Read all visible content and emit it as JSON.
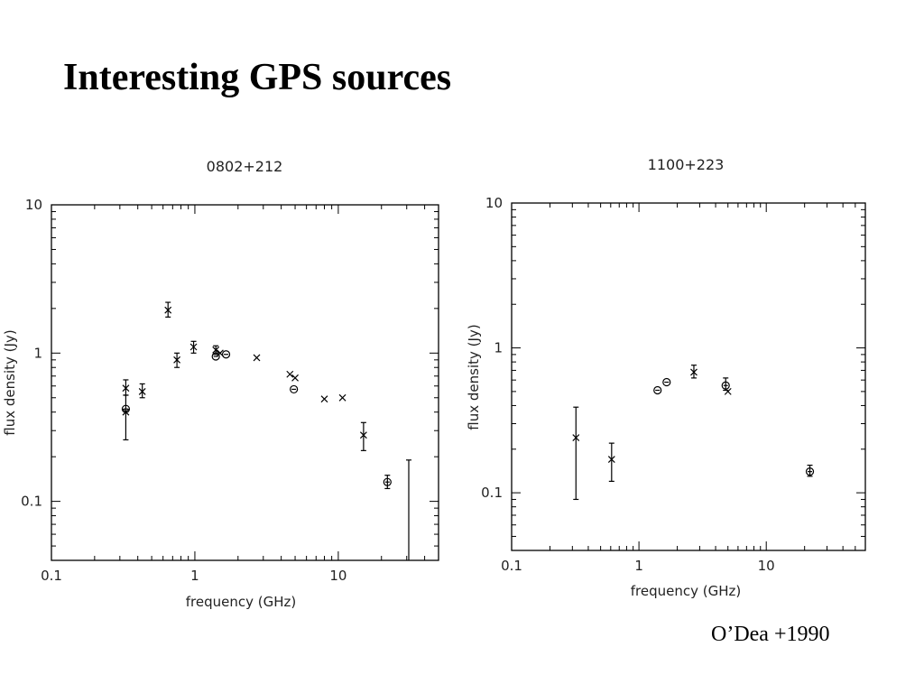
{
  "slide": {
    "title": "Interesting GPS sources",
    "credit": "O’Dea +1990"
  },
  "chart_data": [
    {
      "type": "scatter",
      "title": "0802+212",
      "xlabel": "frequency (GHz)",
      "ylabel": "flux density (Jy)",
      "xscale": "log",
      "yscale": "log",
      "xlim": [
        0.1,
        50
      ],
      "ylim": [
        0.04,
        10
      ],
      "xticks": [
        {
          "v": 0.1,
          "t": "0.1"
        },
        {
          "v": 1,
          "t": "1"
        },
        {
          "v": 10,
          "t": "10"
        }
      ],
      "yticks": [
        {
          "v": 0.1,
          "t": "0.1"
        },
        {
          "v": 1,
          "t": "1"
        },
        {
          "v": 10,
          "t": "10"
        }
      ],
      "grid": false,
      "series": [
        {
          "marker": "cross",
          "points": [
            {
              "x": 0.33,
              "y": 0.58,
              "lo": 0.52,
              "hi": 0.66
            },
            {
              "x": 0.33,
              "y": 0.4,
              "lo": 0.26,
              "hi": 0.52
            },
            {
              "x": 0.43,
              "y": 0.55,
              "lo": 0.5,
              "hi": 0.62
            },
            {
              "x": 0.65,
              "y": 1.95,
              "lo": 1.75,
              "hi": 2.2
            },
            {
              "x": 0.75,
              "y": 0.9,
              "lo": 0.8,
              "hi": 1.0
            },
            {
              "x": 0.98,
              "y": 1.1,
              "lo": 1.0,
              "hi": 1.2
            },
            {
              "x": 1.4,
              "y": 1.05,
              "lo": 0.98,
              "hi": 1.12
            },
            {
              "x": 1.5,
              "y": 1.0
            },
            {
              "x": 2.7,
              "y": 0.93
            },
            {
              "x": 4.6,
              "y": 0.72
            },
            {
              "x": 5.0,
              "y": 0.68
            },
            {
              "x": 8.0,
              "y": 0.49
            },
            {
              "x": 10.7,
              "y": 0.5
            },
            {
              "x": 15.0,
              "y": 0.28,
              "lo": 0.22,
              "hi": 0.34
            }
          ]
        },
        {
          "marker": "circle",
          "points": [
            {
              "x": 0.33,
              "y": 0.42
            },
            {
              "x": 1.4,
              "y": 0.95
            },
            {
              "x": 1.65,
              "y": 0.98
            },
            {
              "x": 4.9,
              "y": 0.57
            },
            {
              "x": 22.0,
              "y": 0.135,
              "lo": 0.122,
              "hi": 0.15
            }
          ]
        },
        {
          "marker": "errorbar-only",
          "points": [
            {
              "x": 31.0,
              "lo": 0.04,
              "hi": 0.19
            }
          ]
        }
      ]
    },
    {
      "type": "scatter",
      "title": "1100+223",
      "xlabel": "frequency (GHz)",
      "ylabel": "flux density (Jy)",
      "xscale": "log",
      "yscale": "log",
      "xlim": [
        0.1,
        60
      ],
      "ylim": [
        0.04,
        10
      ],
      "xticks": [
        {
          "v": 0.1,
          "t": "0.1"
        },
        {
          "v": 1,
          "t": "1"
        },
        {
          "v": 10,
          "t": "10"
        }
      ],
      "yticks": [
        {
          "v": 0.1,
          "t": "0.1"
        },
        {
          "v": 1,
          "t": "1"
        },
        {
          "v": 10,
          "t": "10"
        }
      ],
      "grid": false,
      "series": [
        {
          "marker": "cross",
          "points": [
            {
              "x": 0.32,
              "y": 0.24,
              "lo": 0.09,
              "hi": 0.39
            },
            {
              "x": 0.61,
              "y": 0.17,
              "lo": 0.12,
              "hi": 0.22
            },
            {
              "x": 2.7,
              "y": 0.68,
              "lo": 0.62,
              "hi": 0.76
            },
            {
              "x": 5.0,
              "y": 0.5
            }
          ]
        },
        {
          "marker": "circle",
          "points": [
            {
              "x": 1.4,
              "y": 0.51
            },
            {
              "x": 1.65,
              "y": 0.58
            },
            {
              "x": 4.8,
              "y": 0.55,
              "lo": 0.51,
              "hi": 0.62
            },
            {
              "x": 22.0,
              "y": 0.14,
              "lo": 0.13,
              "hi": 0.155
            }
          ]
        }
      ]
    }
  ]
}
